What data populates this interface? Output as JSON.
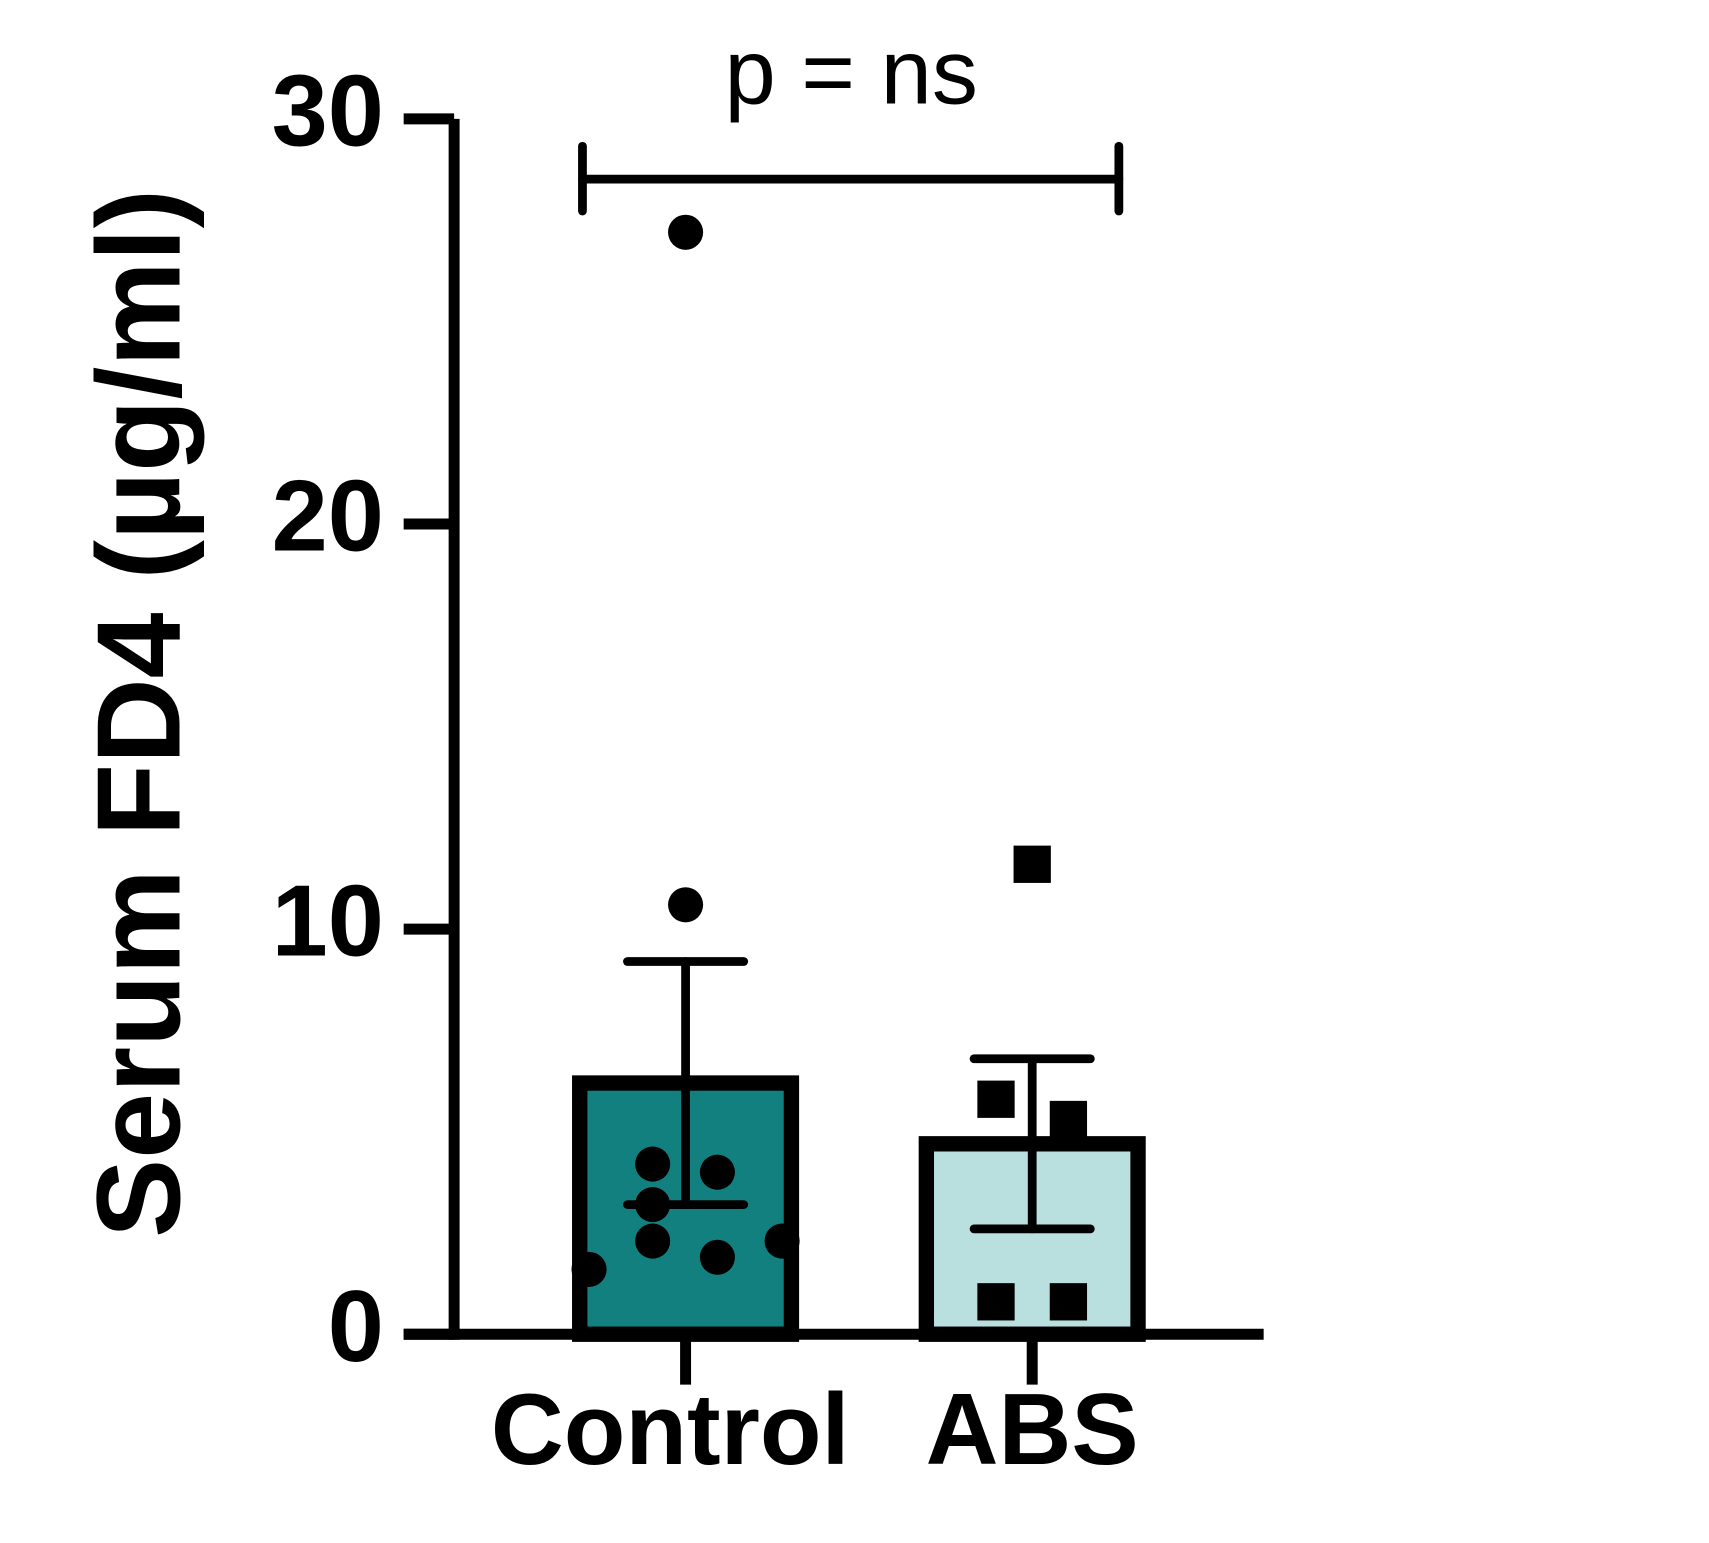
{
  "chart_data": {
    "type": "bar",
    "y_label": "Serum FD4 (µg/ml)",
    "categories": [
      "Control",
      "ABS"
    ],
    "values": [
      6.2,
      4.7
    ],
    "errors": [
      3.0,
      2.1
    ],
    "colors": [
      "#138080",
      "#b9dfdf"
    ],
    "points": [
      [
        27.2,
        10.6,
        4.2,
        4.0,
        3.2,
        2.3,
        1.9,
        2.3,
        1.6
      ],
      [
        11.6,
        5.8,
        5.3,
        0.8,
        0.8
      ]
    ],
    "markers": [
      "circle",
      "square"
    ],
    "ylim": [
      0,
      30
    ],
    "yticks": [
      0,
      10,
      20,
      30
    ],
    "annotation": "p = ns"
  }
}
